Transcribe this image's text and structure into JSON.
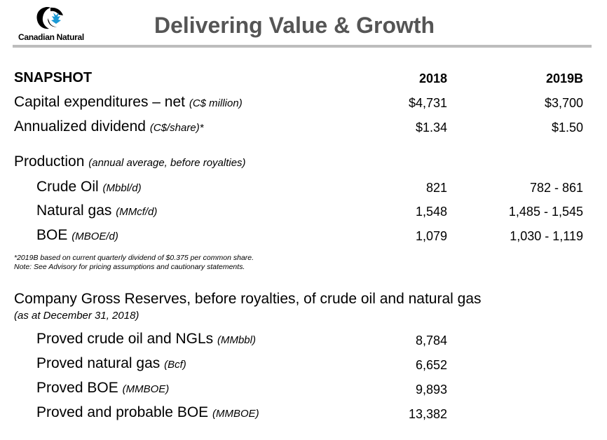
{
  "header": {
    "logo_text": "Canadian Natural",
    "title": "Delivering Value & Growth"
  },
  "snapshot": {
    "heading": "SNAPSHOT",
    "col1": "2018",
    "col2": "2019B",
    "rows": [
      {
        "label": "Capital expenditures – net",
        "unit": "(C$ million)",
        "v2018": "$4,731",
        "v2019": "$3,700"
      },
      {
        "label": "Annualized dividend",
        "unit": "(C$/share)*",
        "v2018": "$1.34",
        "v2019": "$1.50"
      }
    ]
  },
  "production": {
    "label": "Production",
    "unit": "(annual average, before royalties)",
    "rows": [
      {
        "label": "Crude Oil",
        "unit": "(Mbbl/d)",
        "v2018": "821",
        "v2019": "782 - 861"
      },
      {
        "label": "Natural gas",
        "unit": "(MMcf/d)",
        "v2018": "1,548",
        "v2019": "1,485 - 1,545"
      },
      {
        "label": "BOE",
        "unit": "(MBOE/d)",
        "v2018": "1,079",
        "v2019": "1,030 - 1,119"
      }
    ]
  },
  "notes": {
    "line1": "*2019B based on current quarterly dividend of $0.375 per common share.",
    "line2": "Note: See Advisory for pricing assumptions and cautionary statements."
  },
  "reserves": {
    "heading": "Company Gross Reserves, before royalties, of crude oil and natural gas",
    "subheading": "(as at December 31, 2018)",
    "rows": [
      {
        "label": "Proved crude oil and NGLs",
        "unit": "(MMbbl)",
        "value": "8,784"
      },
      {
        "label": "Proved natural gas",
        "unit": "(Bcf)",
        "value": "6,652"
      },
      {
        "label": "Proved BOE",
        "unit": "(MMBOE)",
        "value": "9,893"
      },
      {
        "label": "Proved and probable BOE",
        "unit": "(MMBOE)",
        "value": "13,382"
      }
    ]
  }
}
